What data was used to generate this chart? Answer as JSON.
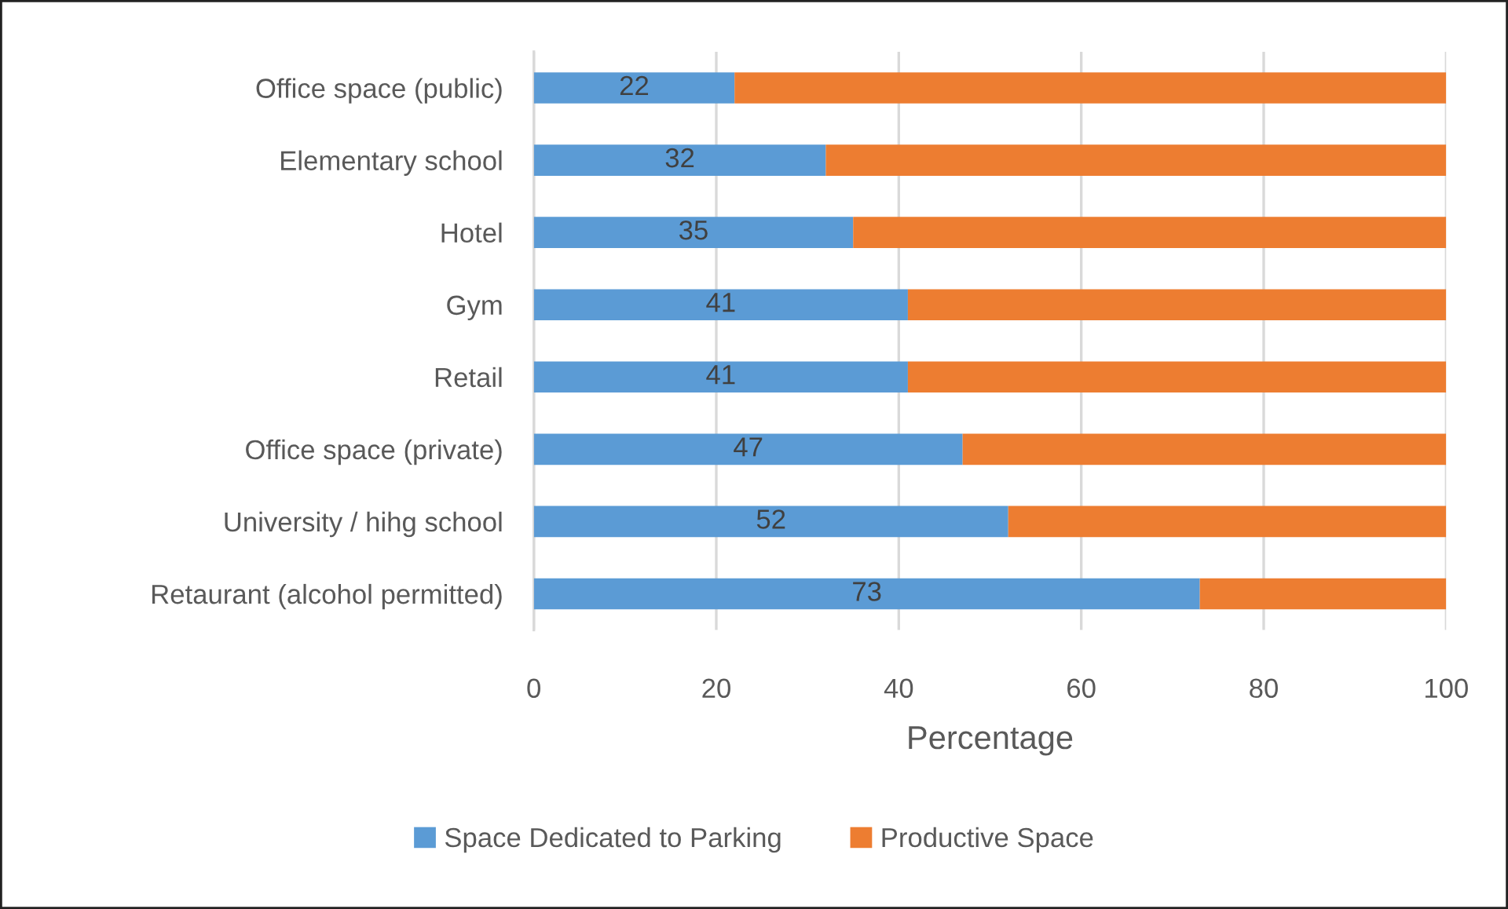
{
  "chart_data": {
    "type": "bar",
    "orientation": "horizontal",
    "stacked": true,
    "categories": [
      "Office space (public)",
      "Elementary school",
      "Hotel",
      "Gym",
      "Retail",
      "Office space (private)",
      "University / hihg school",
      "Retaurant (alcohol permitted)"
    ],
    "series": [
      {
        "name": "Space Dedicated to Parking",
        "color": "#5b9bd5",
        "values": [
          22,
          32,
          35,
          41,
          41,
          47,
          52,
          73
        ],
        "value_labels": [
          "22",
          "32",
          "35",
          "41",
          "41",
          "47",
          "52",
          "73"
        ]
      },
      {
        "name": "Productive Space",
        "color": "#ed7d31",
        "values": [
          78,
          68,
          65,
          59,
          59,
          53,
          48,
          27
        ]
      }
    ],
    "xlabel": "Percentage",
    "xlim": [
      0,
      100
    ],
    "xticks": [
      0,
      20,
      40,
      60,
      80,
      100
    ],
    "grid": "x",
    "legend": "bottom"
  }
}
